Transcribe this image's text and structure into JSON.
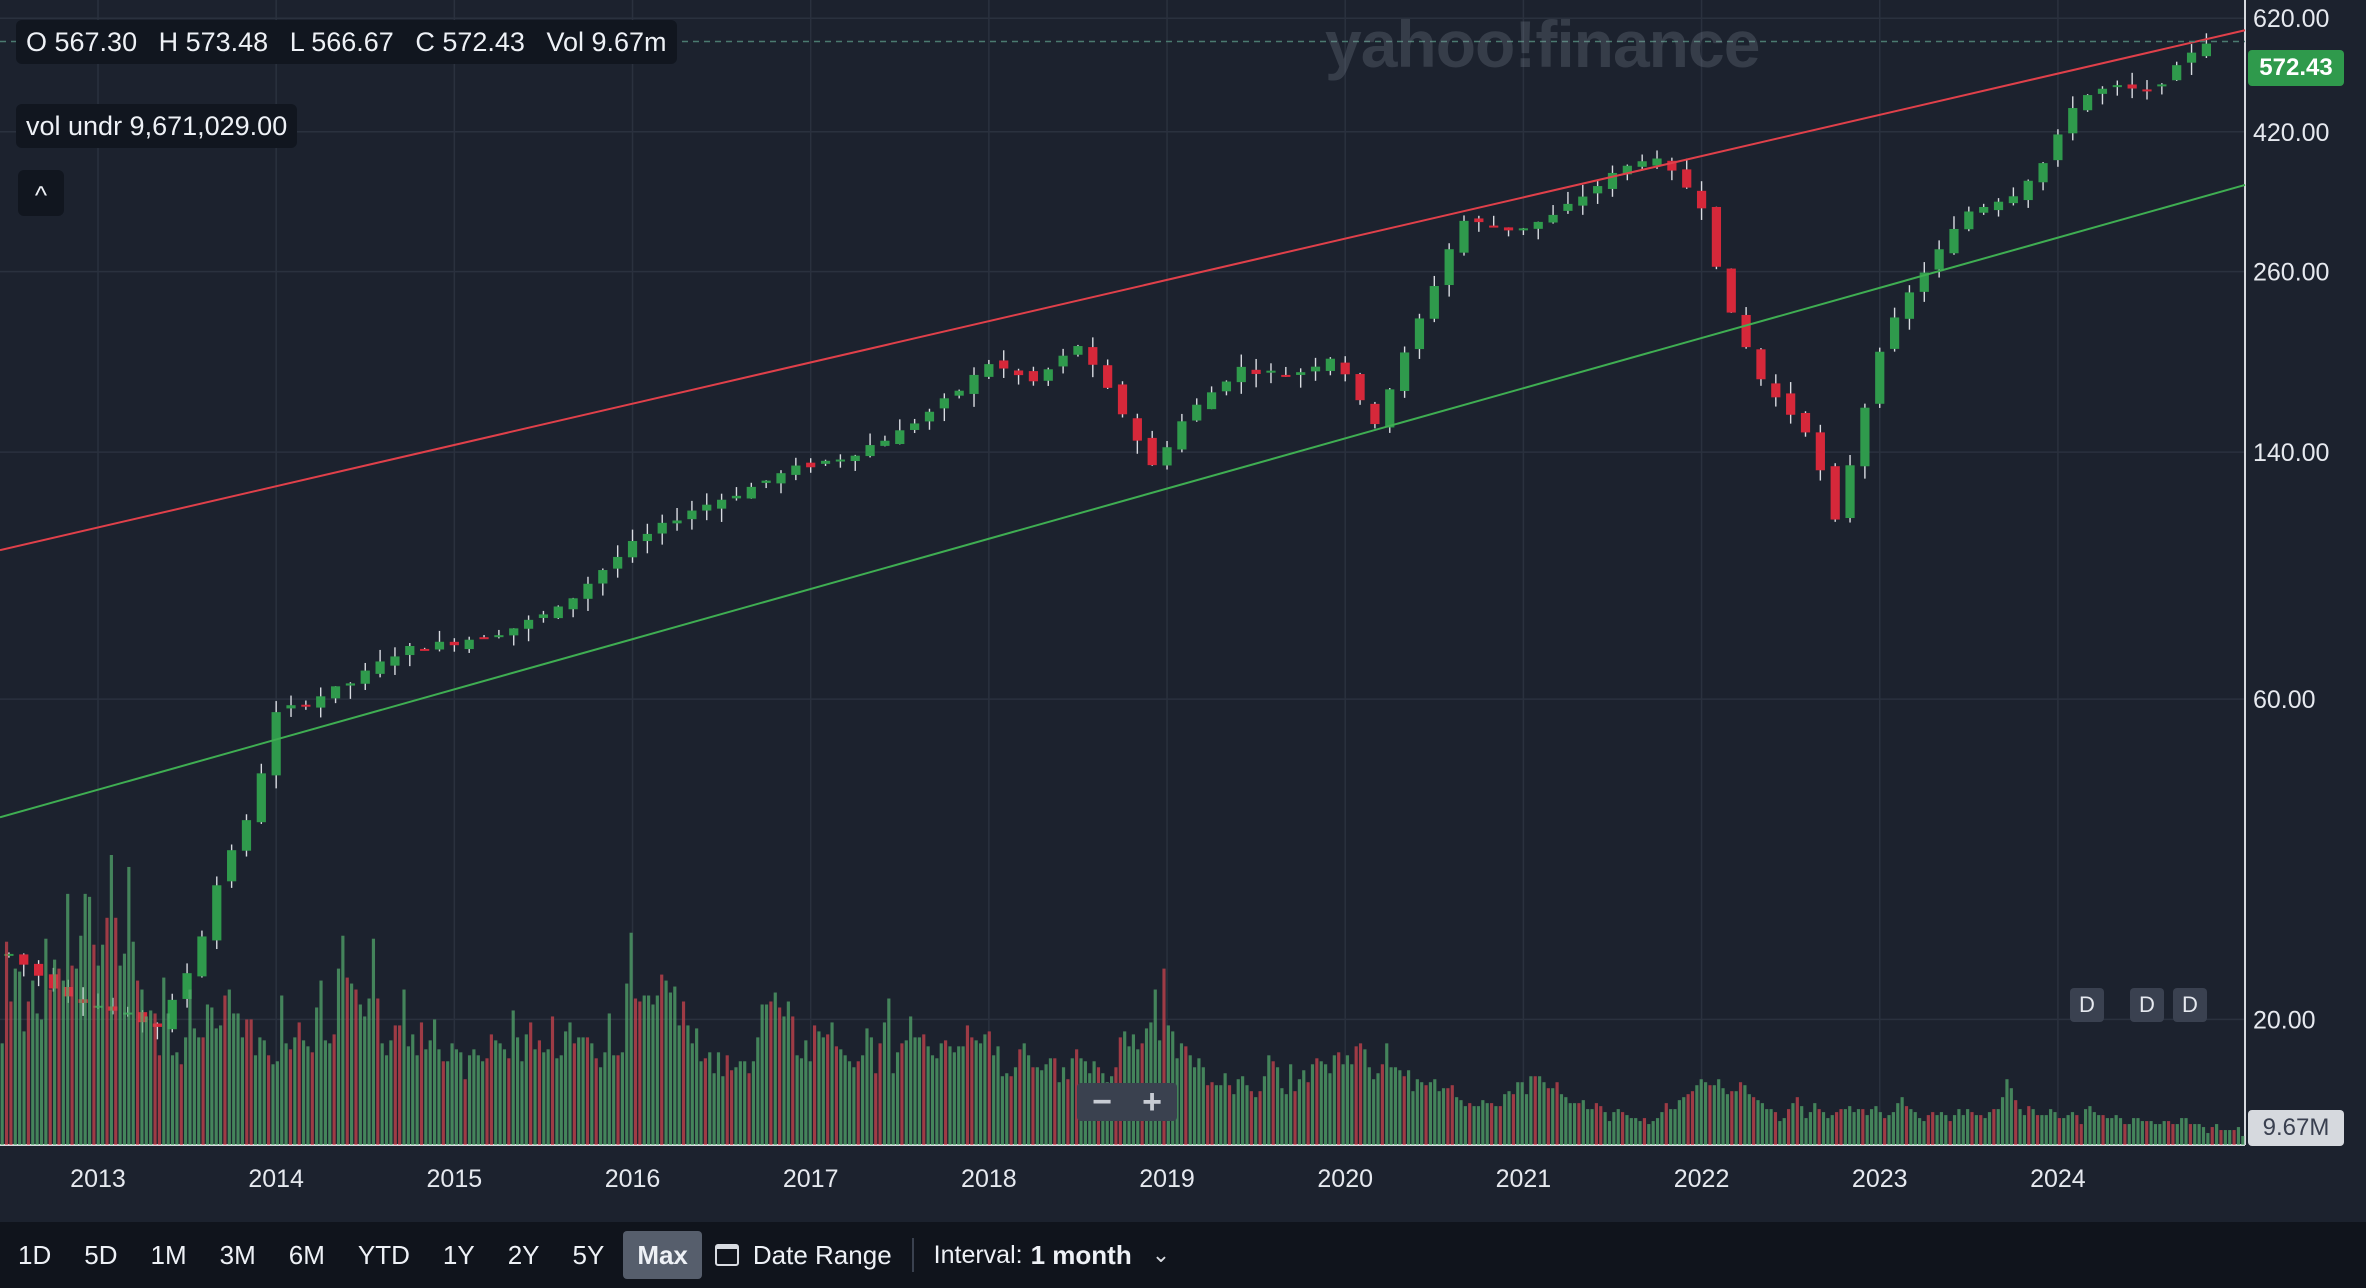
{
  "ohlc": {
    "open": "O 567.30",
    "high": "H 573.48",
    "low": "L 566.67",
    "close": "C 572.43",
    "volume": "Vol 9.67m"
  },
  "volume_overlay": "vol undr  9,671,029.00",
  "collapse_icon": "^",
  "watermark": "yahoo!finance",
  "last_price": "572.43",
  "last_volume": "9.67M",
  "badges": [
    "D",
    "D",
    "D"
  ],
  "zoom": {
    "minus": "−",
    "plus": "+"
  },
  "toolbar": {
    "ranges": [
      "1D",
      "5D",
      "1M",
      "3M",
      "6M",
      "YTD",
      "1Y",
      "2Y",
      "5Y",
      "Max"
    ],
    "active": "Max",
    "date_range_label": "Date Range",
    "interval_label": "Interval:",
    "interval_value": "1 month",
    "calendar_icon": "calendar-icon",
    "chevron_icon": "chevron-down-icon"
  },
  "colors": {
    "background": "#1c222e",
    "up": "#2f9a4c",
    "down": "#d6283a",
    "upper_line": "#e0404a",
    "lower_line": "#3fae52"
  },
  "chart_data": {
    "type": "candlestick",
    "interval": "1 month",
    "y_scale": "log",
    "y_ticks": [
      "620.00",
      "420.00",
      "260.00",
      "140.00",
      "60.00",
      "20.00"
    ],
    "x_ticks": [
      "2013",
      "2014",
      "2015",
      "2016",
      "2017",
      "2018",
      "2019",
      "2020",
      "2021",
      "2022",
      "2023",
      "2024"
    ],
    "y_tick_values": [
      620,
      420,
      260,
      140,
      60,
      20
    ],
    "x_tick_values": [
      2013,
      2014,
      2015,
      2016,
      2017,
      2018,
      2019,
      2020,
      2021,
      2022,
      2023,
      2024
    ],
    "ylim": [
      13,
      660
    ],
    "xlim": [
      2012.45,
      2025.05
    ],
    "anchors": [
      [
        2012.5,
        25
      ],
      [
        2012.8,
        22
      ],
      [
        2013.1,
        20.5
      ],
      [
        2013.35,
        19.5
      ],
      [
        2013.55,
        25
      ],
      [
        2013.7,
        34
      ],
      [
        2013.85,
        40
      ],
      [
        2014.0,
        57
      ],
      [
        2014.2,
        60
      ],
      [
        2014.4,
        63
      ],
      [
        2014.7,
        71
      ],
      [
        2015.0,
        73
      ],
      [
        2015.3,
        76
      ],
      [
        2015.6,
        82
      ],
      [
        2015.8,
        92
      ],
      [
        2016.0,
        102
      ],
      [
        2016.3,
        114
      ],
      [
        2016.6,
        122
      ],
      [
        2016.9,
        132
      ],
      [
        2017.2,
        138
      ],
      [
        2017.5,
        150
      ],
      [
        2017.8,
        170
      ],
      [
        2018.0,
        190
      ],
      [
        2018.25,
        178
      ],
      [
        2018.5,
        202
      ],
      [
        2018.75,
        160
      ],
      [
        2018.92,
        133
      ],
      [
        2019.1,
        158
      ],
      [
        2019.4,
        187
      ],
      [
        2019.7,
        182
      ],
      [
        2019.95,
        196
      ],
      [
        2020.15,
        152
      ],
      [
        2020.35,
        200
      ],
      [
        2020.65,
        310
      ],
      [
        2020.95,
        300
      ],
      [
        2021.15,
        312
      ],
      [
        2021.5,
        362
      ],
      [
        2021.7,
        388
      ],
      [
        2021.9,
        352
      ],
      [
        2022.0,
        327
      ],
      [
        2022.15,
        228
      ],
      [
        2022.35,
        176
      ],
      [
        2022.6,
        150
      ],
      [
        2022.75,
        110
      ],
      [
        2022.85,
        140
      ],
      [
        2023.0,
        200
      ],
      [
        2023.2,
        250
      ],
      [
        2023.5,
        320
      ],
      [
        2023.75,
        340
      ],
      [
        2023.95,
        385
      ],
      [
        2024.1,
        470
      ],
      [
        2024.3,
        490
      ],
      [
        2024.5,
        480
      ],
      [
        2024.68,
        525
      ],
      [
        2024.78,
        567
      ],
      [
        2024.83,
        572.43
      ]
    ],
    "trend_lines": [
      {
        "start": [
          2012.45,
          100
        ],
        "end": [
          2025.05,
          595
        ]
      },
      {
        "start": [
          2012.45,
          40
        ],
        "end": [
          2025.05,
          350
        ]
      }
    ],
    "volume_relative": [
      0.34,
      0.68,
      0.48,
      0.59,
      0.58,
      0.38,
      0.48,
      0.55,
      0.44,
      0.42,
      0.69,
      0.52,
      0.62,
      0.59,
      0.55,
      0.84,
      0.6,
      0.59,
      0.7,
      0.84,
      0.83,
      0.67,
      0.6,
      0.67,
      0.76,
      0.97,
      0.76,
      0.6,
      0.64,
      0.93,
      0.68,
      0.55,
      0.52,
      0.43,
      0.45,
      0.44,
      0.3,
      0.56,
      0.44,
      0.3,
      0.31,
      0.27,
      0.36,
      0.52,
      0.39,
      0.36,
      0.36,
      0.47,
      0.46,
      0.39,
      0.4,
      0.5,
      0.52,
      0.44,
      0.44,
      0.36,
      0.42,
      0.42,
      0.3,
      0.36,
      0.35,
      0.3,
      0.27,
      0.28,
      0.5,
      0.34,
      0.32,
      0.36,
      0.41,
      0.35,
      0.33,
      0.31,
      0.46,
      0.55,
      0.35,
      0.34,
      0.37,
      0.59,
      0.7,
      0.56,
      0.54,
      0.52,
      0.47,
      0.43,
      0.49,
      0.69,
      0.49,
      0.34,
      0.3,
      0.35,
      0.4,
      0.4,
      0.52,
      0.33,
      0.37,
      0.3,
      0.41,
      0.32,
      0.35,
      0.42,
      0.32,
      0.28,
      0.28,
      0.34,
      0.32,
      0.31,
      0.22,
      0.3,
      0.32,
      0.3,
      0.28,
      0.29,
      0.37,
      0.35,
      0.34,
      0.32,
      0.29,
      0.45,
      0.36,
      0.28,
      0.37,
      0.41,
      0.32,
      0.35,
      0.31,
      0.32,
      0.43,
      0.29,
      0.3,
      0.38,
      0.41,
      0.34,
      0.36,
      0.36,
      0.36,
      0.34,
      0.29,
      0.26,
      0.31,
      0.44,
      0.3,
      0.3,
      0.31,
      0.54,
      0.71,
      0.49,
      0.48,
      0.5,
      0.5,
      0.47,
      0.5,
      0.57,
      0.55,
      0.51,
      0.53,
      0.4,
      0.48,
      0.4,
      0.34,
      0.39,
      0.28,
      0.29,
      0.31,
      0.24,
      0.31,
      0.23,
      0.3,
      0.25,
      0.26,
      0.28,
      0.28,
      0.24,
      0.28,
      0.36,
      0.47,
      0.47,
      0.48,
      0.51,
      0.46,
      0.43,
      0.48,
      0.43,
      0.3,
      0.29,
      0.35,
      0.28,
      0.4,
      0.38,
      0.36,
      0.37,
      0.41,
      0.33,
      0.32,
      0.3,
      0.28,
      0.26,
      0.28,
      0.3,
      0.39,
      0.36,
      0.24,
      0.34,
      0.41,
      0.49,
      0.24,
      0.31,
      0.34,
      0.35,
      0.43,
      0.36,
      0.36,
      0.37,
      0.33,
      0.3,
      0.29,
      0.34,
      0.35,
      0.33,
      0.31,
      0.33,
      0.33,
      0.4,
      0.36,
      0.35,
      0.34,
      0.37,
      0.38,
      0.3,
      0.33,
      0.23,
      0.24,
      0.23,
      0.26,
      0.32,
      0.34,
      0.3,
      0.26,
      0.26,
      0.25,
      0.27,
      0.29,
      0.29,
      0.21,
      0.26,
      0.22,
      0.29,
      0.32,
      0.29,
      0.28,
      0.24,
      0.28,
      0.26,
      0.24,
      0.21,
      0.23,
      0.26,
      0.36,
      0.38,
      0.33,
      0.37,
      0.32,
      0.34,
      0.39,
      0.41,
      0.52,
      0.35,
      0.59,
      0.4,
      0.38,
      0.29,
      0.34,
      0.33,
      0.3,
      0.26,
      0.29,
      0.26,
      0.2,
      0.21,
      0.2,
      0.2,
      0.24,
      0.2,
      0.17,
      0.22,
      0.23,
      0.2,
      0.18,
      0.16,
      0.18,
      0.23,
      0.3,
      0.28,
      0.26,
      0.19,
      0.17,
      0.27,
      0.18,
      0.22,
      0.25,
      0.21,
      0.27,
      0.29,
      0.28,
      0.27,
      0.24,
      0.3,
      0.31,
      0.27,
      0.3,
      0.27,
      0.33,
      0.34,
      0.32,
      0.26,
      0.22,
      0.24,
      0.27,
      0.34,
      0.26,
      0.26,
      0.25,
      0.23,
      0.25,
      0.18,
      0.22,
      0.21,
      0.2,
      0.21,
      0.22,
      0.18,
      0.19,
      0.19,
      0.2,
      0.16,
      0.15,
      0.13,
      0.14,
      0.13,
      0.13,
      0.15,
      0.14,
      0.14,
      0.13,
      0.13,
      0.17,
      0.18,
      0.17,
      0.21,
      0.21,
      0.17,
      0.23,
      0.23,
      0.23,
      0.21,
      0.19,
      0.19,
      0.21,
      0.17,
      0.16,
      0.14,
      0.14,
      0.14,
      0.15,
      0.12,
      0.12,
      0.14,
      0.13,
      0.11,
      0.08,
      0.11,
      0.12,
      0.11,
      0.1,
      0.09,
      0.09,
      0.08,
      0.09,
      0.07,
      0.08,
      0.09,
      0.11,
      0.14,
      0.12,
      0.12,
      0.15,
      0.16,
      0.17,
      0.18,
      0.2,
      0.22,
      0.21,
      0.2,
      0.2,
      0.22,
      0.19,
      0.17,
      0.18,
      0.18,
      0.21,
      0.2,
      0.17,
      0.16,
      0.15,
      0.14,
      0.12,
      0.12,
      0.11,
      0.08,
      0.09,
      0.12,
      0.14,
      0.16,
      0.13,
      0.09,
      0.11,
      0.14,
      0.12,
      0.11,
      0.09,
      0.1,
      0.11,
      0.12,
      0.12,
      0.13,
      0.11,
      0.12,
      0.12,
      0.1,
      0.12,
      0.13,
      0.11,
      0.09,
      0.1,
      0.11,
      0.14,
      0.16,
      0.13,
      0.12,
      0.11,
      0.09,
      0.08,
      0.1,
      0.11,
      0.1,
      0.11,
      0.1,
      0.08,
      0.1,
      0.12,
      0.1,
      0.12,
      0.11,
      0.1,
      0.1,
      0.09,
      0.11,
      0.12,
      0.12,
      0.16,
      0.22,
      0.19,
      0.15,
      0.12,
      0.1,
      0.13,
      0.12,
      0.1,
      0.1,
      0.1,
      0.12,
      0.11,
      0.09,
      0.09,
      0.1,
      0.11,
      0.1,
      0.07,
      0.12,
      0.13,
      0.11,
      0.1,
      0.1,
      0.09,
      0.09,
      0.1,
      0.09,
      0.07,
      0.07,
      0.09,
      0.09,
      0.08,
      0.08,
      0.08,
      0.07,
      0.07,
      0.08,
      0.08,
      0.07,
      0.07,
      0.09,
      0.09,
      0.07,
      0.07,
      0.07,
      0.06,
      0.04,
      0.06,
      0.07,
      0.05,
      0.05,
      0.05,
      0.05,
      0.06,
      0.03
    ]
  }
}
